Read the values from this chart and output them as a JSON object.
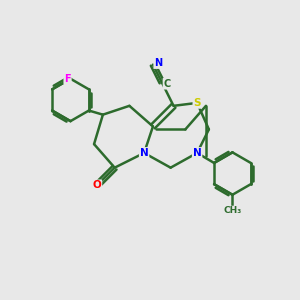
{
  "background_color": "#e8e8e8",
  "bond_color": "#2d6b2d",
  "bond_width": 1.8,
  "atom_colors": {
    "F": "#ff00ff",
    "N": "#0000ff",
    "O": "#ff0000",
    "S": "#cccc00",
    "C": "#2d6b2d"
  },
  "figsize": [
    3.0,
    3.0
  ],
  "dpi": 100,
  "xlim": [
    0,
    10
  ],
  "ylim": [
    0,
    10
  ]
}
